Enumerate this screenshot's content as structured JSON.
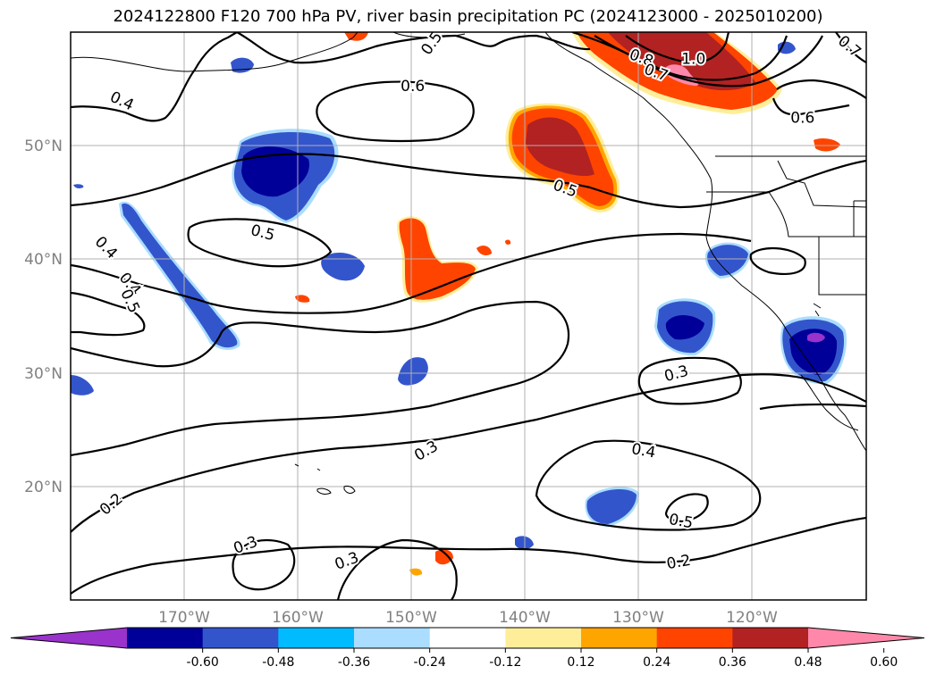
{
  "title": "2024122800 F120 700 hPa PV, river basin precipitation PC (2024123000 - 2025010200)",
  "map": {
    "lon_range": [
      -180,
      -110
    ],
    "lat_range": [
      10,
      60
    ],
    "lon_ticks": [
      "170°W",
      "160°W",
      "150°W",
      "140°W",
      "130°W",
      "120°W"
    ],
    "lat_ticks": [
      "20°N",
      "30°N",
      "40°N",
      "50°N"
    ],
    "gridlines": true
  },
  "contour_labels": [
    {
      "text": "0.4",
      "lon": -175.5,
      "lat": 53.9,
      "rot": 25
    },
    {
      "text": "0.5",
      "lon": -148.2,
      "lat": 59.0,
      "rot": -55
    },
    {
      "text": "0.6",
      "lon": -149.9,
      "lat": 55.2,
      "rot": 0
    },
    {
      "text": "0.8",
      "lon": -129.8,
      "lat": 57.7,
      "rot": 20
    },
    {
      "text": "1.0",
      "lon": -125.2,
      "lat": 57.6,
      "rot": 0
    },
    {
      "text": "0.7",
      "lon": -128.5,
      "lat": 56.4,
      "rot": 20
    },
    {
      "text": "0.7",
      "lon": -111.5,
      "lat": 58.7,
      "rot": 40
    },
    {
      "text": "0.6",
      "lon": -115.6,
      "lat": 52.4,
      "rot": 0
    },
    {
      "text": "0.5",
      "lon": -136.5,
      "lat": 46.2,
      "rot": 20
    },
    {
      "text": "0.5",
      "lon": -163.1,
      "lat": 42.3,
      "rot": 15
    },
    {
      "text": "0.4",
      "lon": -176.9,
      "lat": 41.0,
      "rot": 45
    },
    {
      "text": "0.4",
      "lon": -174.8,
      "lat": 37.8,
      "rot": 50
    },
    {
      "text": "0.5",
      "lon": -174.8,
      "lat": 36.3,
      "rot": 65
    },
    {
      "text": "0.3",
      "lon": -126.7,
      "lat": 29.9,
      "rot": -15
    },
    {
      "text": "0.4",
      "lon": -129.6,
      "lat": 23.1,
      "rot": 10
    },
    {
      "text": "0.3",
      "lon": -148.7,
      "lat": 23.1,
      "rot": -30
    },
    {
      "text": "0.2",
      "lon": -176.4,
      "lat": 18.4,
      "rot": -40
    },
    {
      "text": "0.5",
      "lon": -126.3,
      "lat": 16.9,
      "rot": 10
    },
    {
      "text": "0.3",
      "lon": -164.6,
      "lat": 14.8,
      "rot": -20
    },
    {
      "text": "0.3",
      "lon": -155.7,
      "lat": 13.4,
      "rot": -20
    },
    {
      "text": "0.2",
      "lon": -126.5,
      "lat": 13.3,
      "rot": -10
    }
  ],
  "colorbar": {
    "colors": [
      "#9933cc",
      "#000099",
      "#3355cc",
      "#00bbff",
      "#aaddff",
      "#ffffff",
      "#ffee99",
      "#ffa500",
      "#ff4400",
      "#b22222",
      "#ff88aa"
    ],
    "ticks": [
      "-0.60",
      "-0.48",
      "-0.36",
      "-0.24",
      "-0.12",
      "0.12",
      "0.24",
      "0.36",
      "0.48",
      "0.60"
    ]
  },
  "colors": {
    "land_outline": "#000000",
    "grid": "#b0b0b0",
    "contour": "#000000"
  }
}
